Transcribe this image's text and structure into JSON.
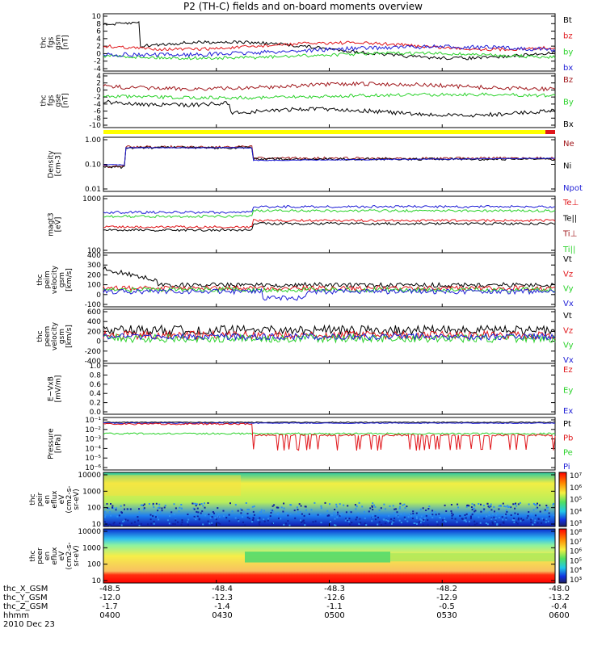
{
  "title": "P2 (TH-C) fields and on-board moments overview",
  "panels": [
    {
      "id": "fgs-gsm",
      "ylabel": [
        "thc",
        "fgs",
        "gsm",
        "[nT]"
      ],
      "ticks": [
        "10",
        "8",
        "6",
        "4",
        "2",
        "0",
        "-2",
        "-4"
      ],
      "labels": [
        {
          "text": "Bt",
          "color": "#000000"
        },
        {
          "text": "bz",
          "color": "#e0171b"
        },
        {
          "text": "by",
          "color": "#2bd22b"
        },
        {
          "text": "bx",
          "color": "#1f1fd6"
        }
      ]
    },
    {
      "id": "fgs-sm",
      "ylabel": [
        "thc",
        "fgs",
        "gse",
        "[nT]"
      ],
      "ticks": [
        "4",
        "2",
        "0",
        "-2",
        "-4",
        "-6",
        "-8",
        "-10"
      ],
      "labels": [
        {
          "text": "Bz",
          "color": "#a0171b"
        },
        {
          "text": "By",
          "color": "#2bd22b"
        },
        {
          "text": "Bx",
          "color": "#000000"
        }
      ]
    },
    {
      "id": "density",
      "ylabel": [
        "Density",
        "[cm-3]"
      ],
      "ticks": [
        "1.00",
        "0.10",
        "0.01"
      ],
      "labels": [
        {
          "text": "Ne",
          "color": "#a0171b"
        },
        {
          "text": "Ni",
          "color": "#000000"
        },
        {
          "text": "Npot",
          "color": "#1f1fd6"
        }
      ]
    },
    {
      "id": "temperature",
      "ylabel": [
        "magt3",
        "[eV]"
      ],
      "ticks": [
        "1000",
        "100"
      ],
      "labels": [
        {
          "text": "Te⊥",
          "color": "#e0171b"
        },
        {
          "text": "Te||",
          "color": "#000000"
        },
        {
          "text": "Ti⊥",
          "color": "#a0171b"
        },
        {
          "text": "Ti||",
          "color": "#2bd22b"
        }
      ]
    },
    {
      "id": "peim-velocity",
      "ylabel": [
        "thc",
        "peim",
        "velocity",
        "gsm",
        "[km/s]"
      ],
      "ticks": [
        "400",
        "300",
        "200",
        "100",
        "0",
        "-100"
      ],
      "labels": [
        {
          "text": "Vt",
          "color": "#000000"
        },
        {
          "text": "Vz",
          "color": "#e0171b"
        },
        {
          "text": "Vy",
          "color": "#2bd22b"
        },
        {
          "text": "Vx",
          "color": "#1f1fd6"
        }
      ]
    },
    {
      "id": "peem-velocity",
      "ylabel": [
        "thc",
        "peem",
        "velocity",
        "gsm",
        "[km/s]"
      ],
      "ticks": [
        "600",
        "400",
        "200",
        "0",
        "-200",
        "-400"
      ],
      "labels": [
        {
          "text": "Vt",
          "color": "#000000"
        },
        {
          "text": "Vz",
          "color": "#e0171b"
        },
        {
          "text": "Vy",
          "color": "#2bd22b"
        },
        {
          "text": "Vx",
          "color": "#1f1fd6"
        }
      ]
    },
    {
      "id": "efield",
      "ylabel": [
        "E−VxB",
        "[mV/m]"
      ],
      "ticks": [
        "1.0",
        "0.8",
        "0.6",
        "0.4",
        "0.2",
        "0.0"
      ],
      "labels": [
        {
          "text": "Ez",
          "color": "#e0171b"
        },
        {
          "text": "Ey",
          "color": "#2bd22b"
        },
        {
          "text": "Ex",
          "color": "#1f1fd6"
        }
      ]
    },
    {
      "id": "pressure",
      "ylabel": [
        "Pressure",
        "[nPa]"
      ],
      "ticks": [
        "10⁻¹",
        "10⁻²",
        "10⁻³",
        "10⁻⁴",
        "10⁻⁵",
        "10⁻⁶"
      ],
      "labels": [
        {
          "text": "Pt",
          "color": "#000000"
        },
        {
          "text": "Pb",
          "color": "#e0171b"
        },
        {
          "text": "Pe",
          "color": "#2bd22b"
        },
        {
          "text": "Pi",
          "color": "#1f1fd6"
        }
      ]
    },
    {
      "id": "ion-spectrogram",
      "ylabel": [
        "thc",
        "peir",
        "en",
        "eflux",
        "eV",
        "(cm2-s-",
        "sr-eV)"
      ],
      "ticks": [
        "10000",
        "1000",
        "100",
        "10"
      ],
      "colorbar": [
        "10⁷",
        "10⁶",
        "10⁵",
        "10⁴",
        "10³"
      ]
    },
    {
      "id": "electron-spectrogram",
      "ylabel": [
        "thc",
        "peer",
        "en",
        "eflux",
        "eV",
        "(cm2-s-",
        "sr-eV)"
      ],
      "ticks": [
        "10000",
        "1000",
        "100",
        "10"
      ],
      "colorbar": [
        "10⁸",
        "10⁷",
        "10⁶",
        "10⁵",
        "10⁴",
        "10³"
      ]
    }
  ],
  "ephemeris": [
    {
      "label": "thc_X_GSM",
      "values": [
        "-48.5",
        "-48.4",
        "-48.3",
        "-48.2",
        "-48.0"
      ]
    },
    {
      "label": "thc_Y_GSM",
      "values": [
        "-12.0",
        "-12.3",
        "-12.6",
        "-12.9",
        "-13.2"
      ]
    },
    {
      "label": "thc_Z_GSM",
      "values": [
        "-1.7",
        "-1.4",
        "-1.1",
        "-0.5",
        "-0.4"
      ]
    },
    {
      "label": "hhmm",
      "values": [
        "0400",
        "0430",
        "0500",
        "0530",
        "0600"
      ]
    }
  ],
  "date": "2010 Dec 23",
  "colors": {
    "black": "#000000",
    "red": "#e0171b",
    "darkred": "#a0171b",
    "green": "#2bd22b",
    "blue": "#1f1fd6",
    "quality_bar": "#ffff00"
  },
  "chart_data": {
    "type": "line",
    "title": "P2 (TH-C) fields and on-board moments overview",
    "x": [
      "0400",
      "0430",
      "0500",
      "0530",
      "0600"
    ],
    "xlabel": "hhmm",
    "series": [
      {
        "name": "Bt",
        "values": [
          8.5,
          3.5,
          3.0,
          2.5,
          2.0
        ]
      },
      {
        "name": "bz",
        "values": [
          2.0,
          1.5,
          1.5,
          1.0,
          1.5
        ]
      },
      {
        "name": "by",
        "values": [
          0.0,
          -0.5,
          -0.3,
          -0.5,
          -0.5
        ]
      },
      {
        "name": "bx",
        "values": [
          -1.0,
          0.5,
          0.8,
          1.0,
          1.0
        ]
      },
      {
        "name": "Ne",
        "values": [
          0.08,
          0.5,
          0.2,
          0.25,
          0.22
        ]
      },
      {
        "name": "Ni",
        "values": [
          0.08,
          0.5,
          0.18,
          0.25,
          0.2
        ]
      },
      {
        "name": "Npot",
        "values": [
          0.1,
          0.5,
          0.12,
          0.2,
          0.2
        ]
      },
      {
        "name": "Pt",
        "values": [
          0.03,
          0.03,
          0.02,
          0.03,
          0.03
        ]
      },
      {
        "name": "Pb",
        "values": [
          0.03,
          0.015,
          0.0002,
          0.0003,
          0.0002
        ]
      }
    ]
  }
}
